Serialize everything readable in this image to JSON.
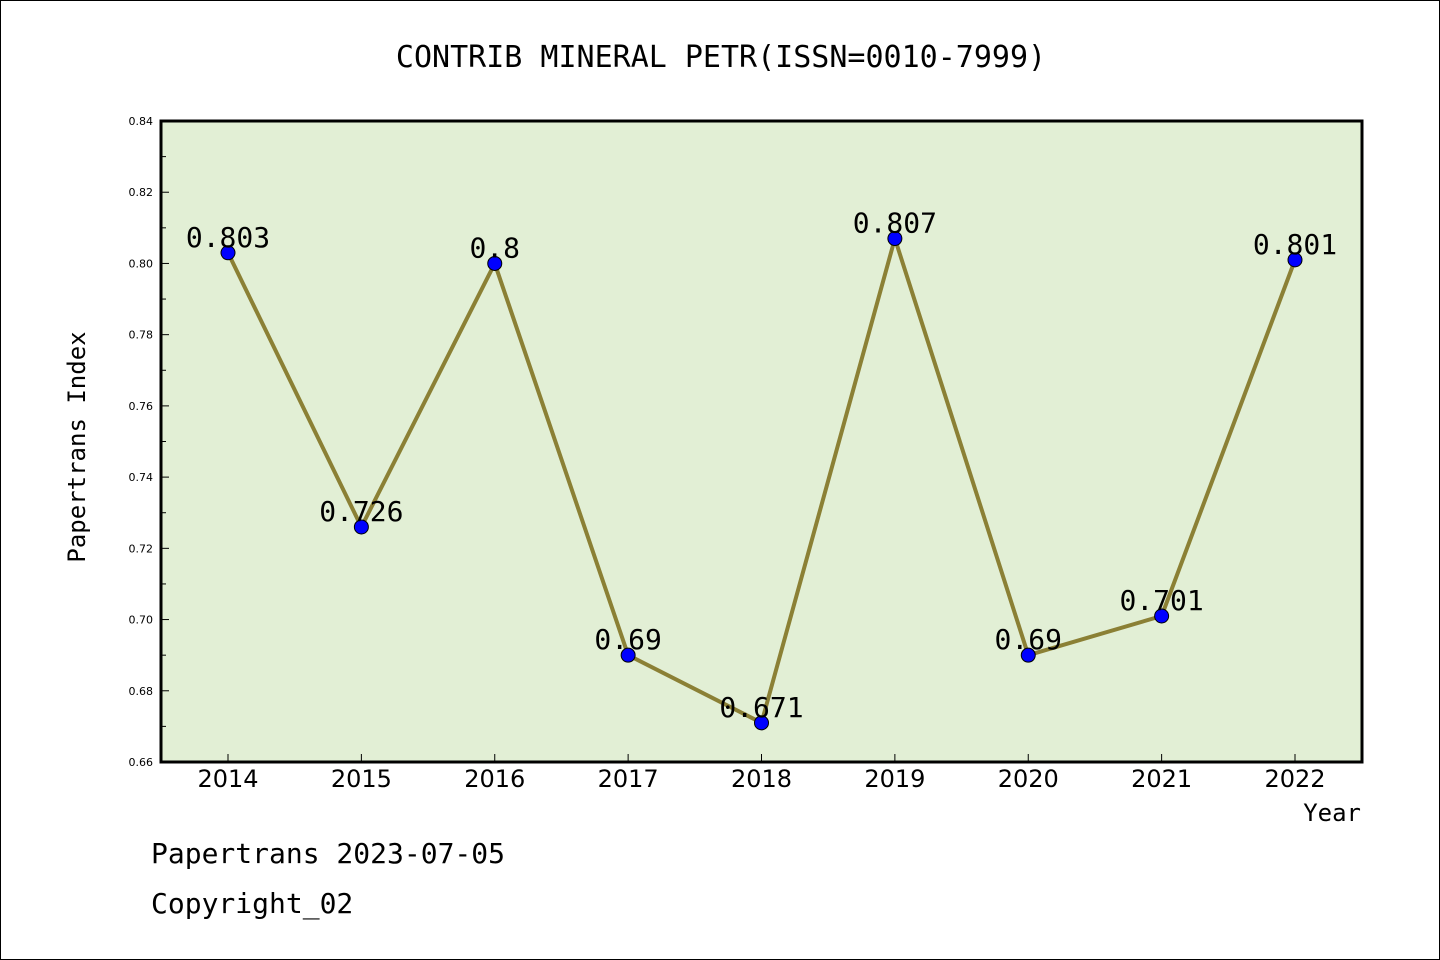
{
  "chart_data": {
    "type": "line",
    "title": "CONTRIB MINERAL PETR(ISSN=0010-7999)",
    "xlabel": "Year",
    "ylabel": "Papertrans Index",
    "categories": [
      "2014",
      "2015",
      "2016",
      "2017",
      "2018",
      "2019",
      "2020",
      "2021",
      "2022"
    ],
    "values": [
      0.803,
      0.726,
      0.8,
      0.69,
      0.671,
      0.807,
      0.69,
      0.701,
      0.801
    ],
    "data_labels": [
      "0.803",
      "0.726",
      "0.8",
      "0.69",
      "0.671",
      "0.807",
      "0.69",
      "0.701",
      "0.801"
    ],
    "ylim": [
      0.66,
      0.84
    ],
    "y_ticks": [
      "0.66",
      "0.68",
      "0.70",
      "0.72",
      "0.74",
      "0.76",
      "0.78",
      "0.80",
      "0.82",
      "0.84"
    ],
    "grid": false,
    "legend": "none",
    "colors": {
      "plot_background": "#e2efd5",
      "line": "#8b8035",
      "marker": "#0000ff"
    }
  },
  "footer": {
    "line1": "Papertrans 2023-07-05",
    "line2": "Copyright_02"
  }
}
